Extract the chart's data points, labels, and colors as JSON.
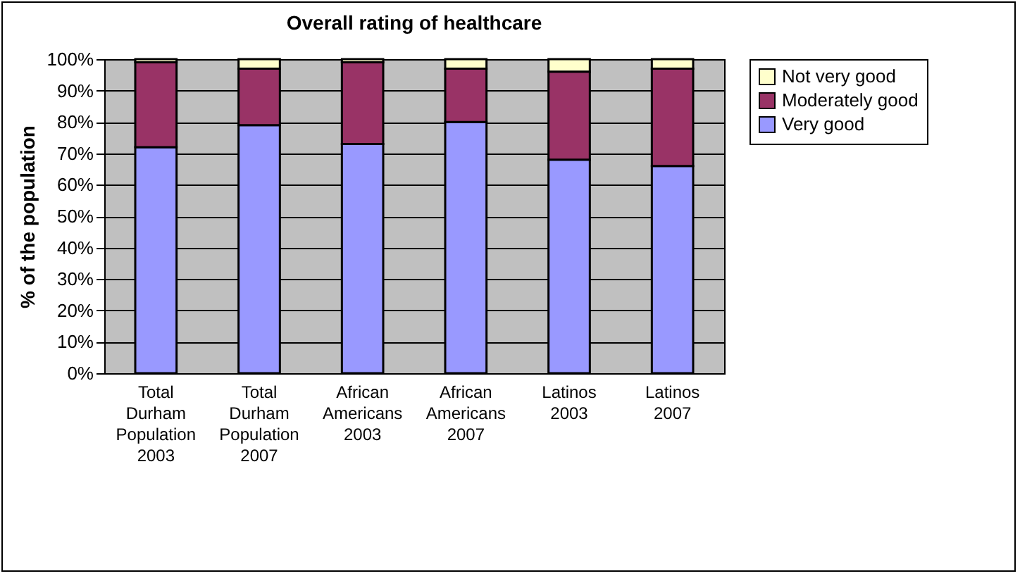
{
  "chart_data": {
    "type": "bar",
    "title": "Overall rating of healthcare",
    "ylabel": "% of the population",
    "categories": [
      "Total Durham Population 2003",
      "Total Durham Population 2007",
      "African Americans 2003",
      "African Americans 2007",
      "Latinos 2003",
      "Latinos 2007"
    ],
    "series": [
      {
        "name": "Very good",
        "color": "#9999ff",
        "values": [
          72,
          79,
          73,
          80,
          68,
          66
        ]
      },
      {
        "name": "Moderately good",
        "color": "#993366",
        "values": [
          27,
          18,
          26,
          17,
          28,
          31
        ]
      },
      {
        "name": "Not very good",
        "color": "#ffffcc",
        "values": [
          1,
          3,
          1,
          3,
          4,
          3
        ]
      }
    ],
    "stacked": true,
    "ylim": [
      0,
      100
    ],
    "yticks": [
      {
        "value": 0,
        "label": "0%"
      },
      {
        "value": 10,
        "label": "10%"
      },
      {
        "value": 20,
        "label": "20%"
      },
      {
        "value": 30,
        "label": "30%"
      },
      {
        "value": 40,
        "label": "40%"
      },
      {
        "value": 50,
        "label": "50%"
      },
      {
        "value": 60,
        "label": "60%"
      },
      {
        "value": 70,
        "label": "70%"
      },
      {
        "value": 80,
        "label": "80%"
      },
      {
        "value": 90,
        "label": "90%"
      },
      {
        "value": 100,
        "label": "100%"
      }
    ],
    "grid": "y",
    "legend": "right"
  }
}
